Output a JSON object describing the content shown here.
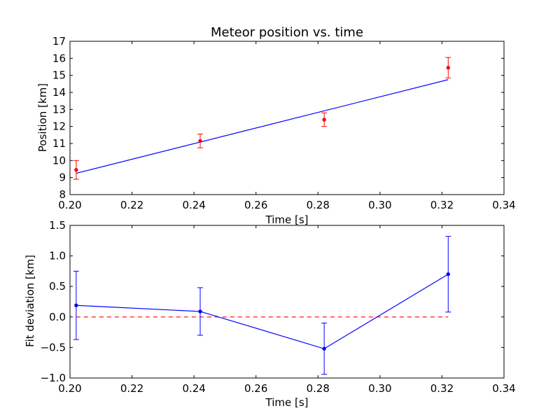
{
  "chart_data": [
    {
      "type": "scatter",
      "title": "Meteor position vs. time",
      "xlabel": "Time [s]",
      "ylabel": "Position [km]",
      "xlim": [
        0.2,
        0.34
      ],
      "ylim": [
        8,
        17
      ],
      "xticks": [
        0.2,
        0.22,
        0.24,
        0.26,
        0.28,
        0.3,
        0.32,
        0.34
      ],
      "yticks": [
        8,
        9,
        10,
        11,
        12,
        13,
        14,
        15,
        16,
        17
      ],
      "xtick_labels": [
        "0.20",
        "0.22",
        "0.24",
        "0.26",
        "0.28",
        "0.30",
        "0.32",
        "0.34"
      ],
      "ytick_labels": [
        "8",
        "9",
        "10",
        "11",
        "12",
        "13",
        "14",
        "15",
        "16",
        "17"
      ],
      "grid": false,
      "points": {
        "color": "#ff0000",
        "x": [
          0.202,
          0.242,
          0.282,
          0.322
        ],
        "y": [
          9.45,
          11.15,
          12.4,
          15.45
        ],
        "yerr": [
          0.55,
          0.4,
          0.4,
          0.6
        ]
      },
      "fit_line": {
        "color": "#0000ff",
        "x": [
          0.202,
          0.322
        ],
        "y": [
          9.25,
          14.75
        ]
      }
    },
    {
      "type": "line",
      "title": "",
      "xlabel": "Time [s]",
      "ylabel": "Fit deviation [km]",
      "xlim": [
        0.2,
        0.34
      ],
      "ylim": [
        -1.0,
        1.5
      ],
      "xticks": [
        0.2,
        0.22,
        0.24,
        0.26,
        0.28,
        0.3,
        0.32,
        0.34
      ],
      "yticks": [
        -1.0,
        -0.5,
        0.0,
        0.5,
        1.0,
        1.5
      ],
      "xtick_labels": [
        "0.20",
        "0.22",
        "0.24",
        "0.26",
        "0.28",
        "0.30",
        "0.32",
        "0.34"
      ],
      "ytick_labels": [
        "−1.0",
        "−0.5",
        "0.0",
        "0.5",
        "1.0",
        "1.5"
      ],
      "grid": false,
      "series": {
        "color": "#0000ff",
        "x": [
          0.202,
          0.242,
          0.282,
          0.322
        ],
        "y": [
          0.19,
          0.09,
          -0.52,
          0.7
        ],
        "yerr": [
          0.56,
          0.39,
          0.42,
          0.62
        ]
      },
      "reference_line": {
        "color": "#ff0000",
        "style": "dashed",
        "y": 0.0,
        "x": [
          0.202,
          0.322
        ]
      }
    }
  ]
}
